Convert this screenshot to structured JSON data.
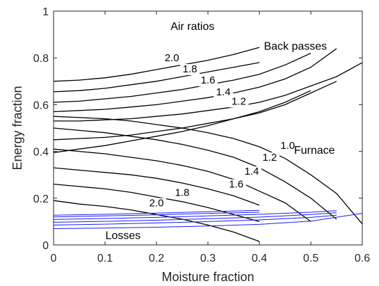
{
  "chart_data": {
    "type": "line",
    "title": "",
    "xlabel": "Moisture fraction",
    "ylabel": "Energy fraction",
    "xlim": [
      0,
      0.6
    ],
    "ylim": [
      0,
      1
    ],
    "xticks": [
      "0",
      "0.1",
      "0.2",
      "0.3",
      "0.4",
      "0.5",
      "0.6"
    ],
    "yticks": [
      "0",
      "0.2",
      "0.4",
      "0.6",
      "0.8",
      "1"
    ],
    "grid": false,
    "legend": "none",
    "colors": {
      "black": "#000000",
      "blue": "#1a1aff",
      "axis": "#262626"
    },
    "annotations": [
      {
        "text": "Air ratios",
        "x": 0.27,
        "y": 0.92
      },
      {
        "text": "Back passes",
        "x": 0.47,
        "y": 0.835
      },
      {
        "text": "Furnace",
        "x": 0.507,
        "y": 0.39
      },
      {
        "text": "Losses",
        "x": 0.135,
        "y": 0.025
      }
    ],
    "groups": [
      {
        "name": "Back passes",
        "color": "black",
        "series": [
          {
            "label": "2.0",
            "label_pos": [
              0.23,
              0.785
            ],
            "x": [
              0,
              0.05,
              0.1,
              0.15,
              0.2,
              0.25,
              0.3,
              0.35,
              0.4
            ],
            "y": [
              0.7,
              0.705,
              0.715,
              0.73,
              0.75,
              0.77,
              0.79,
              0.815,
              0.845
            ]
          },
          {
            "label": "1.8",
            "label_pos": [
              0.265,
              0.738
            ],
            "x": [
              0,
              0.05,
              0.1,
              0.15,
              0.2,
              0.25,
              0.3,
              0.35,
              0.4
            ],
            "y": [
              0.655,
              0.66,
              0.67,
              0.685,
              0.7,
              0.72,
              0.74,
              0.76,
              0.78
            ]
          },
          {
            "label": "1.6",
            "label_pos": [
              0.3,
              0.69
            ],
            "x": [
              0,
              0.05,
              0.1,
              0.15,
              0.2,
              0.25,
              0.3,
              0.35,
              0.4,
              0.45,
              0.5
            ],
            "y": [
              0.61,
              0.615,
              0.625,
              0.635,
              0.65,
              0.665,
              0.685,
              0.705,
              0.73,
              0.77,
              0.82
            ]
          },
          {
            "label": "1.4",
            "label_pos": [
              0.33,
              0.64
            ],
            "x": [
              0,
              0.05,
              0.1,
              0.15,
              0.2,
              0.25,
              0.3,
              0.35,
              0.4,
              0.45,
              0.5,
              0.55
            ],
            "y": [
              0.57,
              0.575,
              0.58,
              0.59,
              0.6,
              0.615,
              0.63,
              0.65,
              0.675,
              0.71,
              0.76,
              0.84
            ]
          },
          {
            "label": "1.2",
            "label_pos": [
              0.36,
              0.6
            ],
            "x": [
              0,
              0.05,
              0.1,
              0.15,
              0.2,
              0.25,
              0.3,
              0.35,
              0.4,
              0.45,
              0.5,
              0.55,
              0.6
            ],
            "y": [
              0.53,
              0.53,
              0.535,
              0.54,
              0.55,
              0.56,
              0.575,
              0.59,
              0.61,
              0.64,
              0.68,
              0.72,
              0.78
            ]
          },
          {
            "label": "",
            "label_pos": null,
            "x": [
              0,
              0.05,
              0.1,
              0.15,
              0.2,
              0.25,
              0.3,
              0.35,
              0.4,
              0.45,
              0.5,
              0.55
            ],
            "y": [
              0.45,
              0.455,
              0.46,
              0.47,
              0.485,
              0.5,
              0.52,
              0.54,
              0.565,
              0.6,
              0.65,
              0.7
            ]
          },
          {
            "label": "",
            "label_pos": null,
            "x": [
              0,
              0.05,
              0.1,
              0.15,
              0.2,
              0.25,
              0.3,
              0.35,
              0.4,
              0.45,
              0.5
            ],
            "y": [
              0.395,
              0.41,
              0.425,
              0.445,
              0.465,
              0.485,
              0.51,
              0.54,
              0.57,
              0.61,
              0.66
            ]
          }
        ]
      },
      {
        "name": "Furnace",
        "color": "black",
        "series": [
          {
            "label": "1.0",
            "label_pos": [
              0.455,
              0.41
            ],
            "x": [
              0,
              0.05,
              0.1,
              0.15,
              0.2,
              0.25,
              0.3,
              0.35,
              0.4,
              0.45,
              0.5,
              0.55,
              0.6
            ],
            "y": [
              0.55,
              0.545,
              0.54,
              0.53,
              0.515,
              0.5,
              0.48,
              0.455,
              0.42,
              0.37,
              0.3,
              0.22,
              0.09
            ]
          },
          {
            "label": "1.2",
            "label_pos": [
              0.42,
              0.36
            ],
            "x": [
              0,
              0.05,
              0.1,
              0.15,
              0.2,
              0.25,
              0.3,
              0.35,
              0.4,
              0.45,
              0.5,
              0.55
            ],
            "y": [
              0.5,
              0.49,
              0.48,
              0.465,
              0.45,
              0.43,
              0.405,
              0.375,
              0.33,
              0.27,
              0.2,
              0.11
            ]
          },
          {
            "label": "1.4",
            "label_pos": [
              0.385,
              0.3
            ],
            "x": [
              0,
              0.05,
              0.1,
              0.15,
              0.2,
              0.25,
              0.3,
              0.35,
              0.4,
              0.45,
              0.5
            ],
            "y": [
              0.41,
              0.4,
              0.39,
              0.375,
              0.36,
              0.34,
              0.315,
              0.28,
              0.23,
              0.18,
              0.1
            ]
          },
          {
            "label": "1.6",
            "label_pos": [
              0.355,
              0.245
            ],
            "x": [
              0,
              0.05,
              0.1,
              0.15,
              0.2,
              0.25,
              0.3,
              0.35,
              0.4
            ],
            "y": [
              0.33,
              0.32,
              0.31,
              0.3,
              0.285,
              0.265,
              0.24,
              0.21,
              0.17
            ]
          },
          {
            "label": "1.8",
            "label_pos": [
              0.25,
              0.21
            ],
            "x": [
              0,
              0.05,
              0.1,
              0.15,
              0.2,
              0.25,
              0.3,
              0.35,
              0.4
            ],
            "y": [
              0.26,
              0.25,
              0.24,
              0.225,
              0.205,
              0.185,
              0.16,
              0.13,
              0.1
            ]
          },
          {
            "label": "2.0",
            "label_pos": [
              0.2,
              0.165
            ],
            "x": [
              0,
              0.05,
              0.1,
              0.15,
              0.2,
              0.25,
              0.3,
              0.35,
              0.4
            ],
            "y": [
              0.19,
              0.175,
              0.165,
              0.15,
              0.13,
              0.11,
              0.085,
              0.055,
              0.015
            ]
          }
        ]
      },
      {
        "name": "Losses",
        "color": "blue",
        "series": [
          {
            "label": "",
            "label_pos": null,
            "x": [
              0,
              0.1,
              0.2,
              0.3,
              0.4,
              0.5,
              0.6
            ],
            "y": [
              0.07,
              0.072,
              0.076,
              0.081,
              0.088,
              0.102,
              0.135
            ]
          },
          {
            "label": "",
            "label_pos": null,
            "x": [
              0,
              0.1,
              0.2,
              0.3,
              0.4,
              0.5,
              0.55
            ],
            "y": [
              0.085,
              0.089,
              0.094,
              0.1,
              0.107,
              0.118,
              0.127
            ]
          },
          {
            "label": "",
            "label_pos": null,
            "x": [
              0,
              0.1,
              0.2,
              0.3,
              0.4,
              0.5,
              0.55
            ],
            "y": [
              0.097,
              0.101,
              0.106,
              0.112,
              0.119,
              0.13,
              0.138
            ]
          },
          {
            "label": "",
            "label_pos": null,
            "x": [
              0,
              0.1,
              0.2,
              0.3,
              0.4,
              0.5,
              0.55
            ],
            "y": [
              0.109,
              0.113,
              0.118,
              0.124,
              0.131,
              0.14,
              0.147
            ]
          },
          {
            "label": "",
            "label_pos": null,
            "x": [
              0,
              0.1,
              0.2,
              0.3,
              0.4
            ],
            "y": [
              0.12,
              0.124,
              0.129,
              0.135,
              0.14
            ]
          },
          {
            "label": "",
            "label_pos": null,
            "x": [
              0,
              0.1,
              0.2,
              0.3,
              0.4
            ],
            "y": [
              0.127,
              0.131,
              0.136,
              0.142,
              0.148
            ]
          }
        ]
      }
    ]
  }
}
